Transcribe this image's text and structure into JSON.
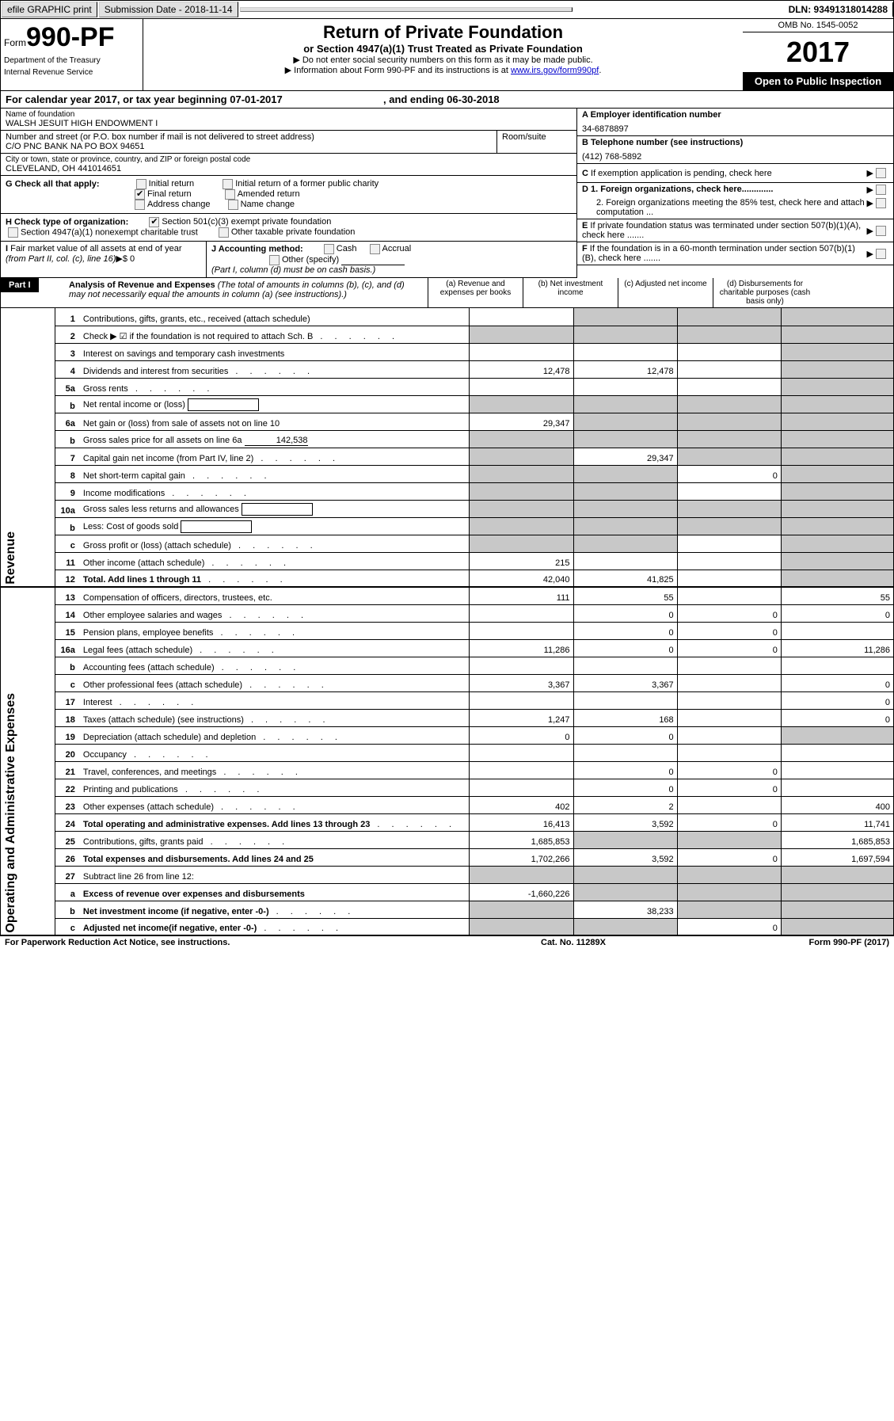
{
  "topbar": {
    "efile": "efile GRAPHIC print",
    "submission": "Submission Date - 2018-11-14",
    "dln": "DLN: 93491318014288"
  },
  "header": {
    "form_word": "Form",
    "form_no": "990-PF",
    "dept1": "Department of the Treasury",
    "dept2": "Internal Revenue Service",
    "title": "Return of Private Foundation",
    "subtitle": "or Section 4947(a)(1) Trust Treated as Private Foundation",
    "note1": "▶ Do not enter social security numbers on this form as it may be made public.",
    "note2": "▶ Information about Form 990-PF and its instructions is at ",
    "note2_link": "www.irs.gov/form990pf",
    "omb": "OMB No. 1545-0052",
    "year": "2017",
    "open": "Open to Public Inspection"
  },
  "calyear": {
    "prefix": "For calendar year 2017, or tax year beginning ",
    "begin": "07-01-2017",
    "mid": " , and ending ",
    "end": "06-30-2018"
  },
  "name_block": {
    "lbl": "Name of foundation",
    "val": "WALSH JESUIT HIGH ENDOWMENT I"
  },
  "ein_block": {
    "lbl": "A Employer identification number",
    "val": "34-6878897"
  },
  "addr1": {
    "lbl": "Number and street (or P.O. box number if mail is not delivered to street address)",
    "val": "C/O PNC BANK NA PO BOX 94651",
    "room_lbl": "Room/suite"
  },
  "tel_block": {
    "lbl": "B Telephone number (see instructions)",
    "val": "(412) 768-5892"
  },
  "addr2": {
    "lbl": "City or town, state or province, country, and ZIP or foreign postal code",
    "val": "CLEVELAND, OH  441014651"
  },
  "c_block": "C If exemption application is pending, check here",
  "g": {
    "lbl": "G Check all that apply:",
    "o1": "Initial return",
    "o2": "Initial return of a former public charity",
    "o3": "Final return",
    "o4": "Amended return",
    "o5": "Address change",
    "o6": "Name change"
  },
  "d": {
    "d1": "D 1. Foreign organizations, check here.............",
    "d2": "2. Foreign organizations meeting the 85% test, check here and attach computation ..."
  },
  "h": {
    "lbl": "H Check type of organization:",
    "o1": "Section 501(c)(3) exempt private foundation",
    "o2": "Section 4947(a)(1) nonexempt charitable trust",
    "o3": "Other taxable private foundation"
  },
  "e": "E If private foundation status was terminated under section 507(b)(1)(A), check here .......",
  "i": "I Fair market value of all assets at end of year (from Part II, col. (c), line 16)▶$ 0",
  "j": {
    "lbl": "J Accounting method:",
    "cash": "Cash",
    "accrual": "Accrual",
    "other": "Other (specify)",
    "note": "(Part I, column (d) must be on cash basis.)"
  },
  "f": "F If the foundation is in a 60-month termination under section 507(b)(1)(B), check here .......",
  "part1": {
    "hdr": "Part I",
    "title": "Analysis of Revenue and Expenses",
    "title_note": "(The total of amounts in columns (b), (c), and (d) may not necessarily equal the amounts in column (a) (see instructions).)",
    "col_a": "(a)  Revenue and expenses per books",
    "col_b": "(b)  Net investment income",
    "col_c": "(c)  Adjusted net income",
    "col_d": "(d)  Disbursements for charitable purposes (cash basis only)"
  },
  "side_rev": "Revenue",
  "side_exp": "Operating and Administrative Expenses",
  "rows": [
    {
      "ln": "1",
      "desc": "Contributions, gifts, grants, etc., received (attach schedule)",
      "a": "",
      "b": "-",
      "c": "-",
      "d": "-"
    },
    {
      "ln": "2",
      "desc": "Check ▶ ☑ if the foundation is not required to attach Sch. B",
      "dots": true,
      "a": "-",
      "b": "-",
      "c": "-",
      "d": "-",
      "noborder_b": true,
      "noborder_c": true,
      "noborder_d": true
    },
    {
      "ln": "3",
      "desc": "Interest on savings and temporary cash investments",
      "a": "",
      "b": "",
      "c": "",
      "d": "-"
    },
    {
      "ln": "4",
      "desc": "Dividends and interest from securities",
      "dots": true,
      "a": "12,478",
      "b": "12,478",
      "c": "",
      "d": "-"
    },
    {
      "ln": "5a",
      "desc": "Gross rents",
      "dots": true,
      "a": "",
      "b": "",
      "c": "",
      "d": "-"
    },
    {
      "ln": "b",
      "desc": "Net rental income or (loss)",
      "inline_box": true,
      "a": "-",
      "b": "-",
      "c": "-",
      "d": "-"
    },
    {
      "ln": "6a",
      "desc": "Net gain or (loss) from sale of assets not on line 10",
      "a": "29,347",
      "b": "-",
      "c": "-",
      "d": "-"
    },
    {
      "ln": "b",
      "desc": "Gross sales price for all assets on line 6a",
      "inline_val": "142,538",
      "a": "-",
      "b": "-",
      "c": "-",
      "d": "-"
    },
    {
      "ln": "7",
      "desc": "Capital gain net income (from Part IV, line 2)",
      "dots": true,
      "a": "-",
      "b": "29,347",
      "c": "-",
      "d": "-"
    },
    {
      "ln": "8",
      "desc": "Net short-term capital gain",
      "dots": true,
      "a": "-",
      "b": "-",
      "c": "0",
      "d": "-"
    },
    {
      "ln": "9",
      "desc": "Income modifications",
      "dots": true,
      "a": "-",
      "b": "-",
      "c": "",
      "d": "-"
    },
    {
      "ln": "10a",
      "desc": "Gross sales less returns and allowances",
      "inline_box": true,
      "a": "-",
      "b": "-",
      "c": "-",
      "d": "-"
    },
    {
      "ln": "b",
      "desc": "Less: Cost of goods sold",
      "inline_box": true,
      "a": "-",
      "b": "-",
      "c": "-",
      "d": "-"
    },
    {
      "ln": "c",
      "desc": "Gross profit or (loss) (attach schedule)",
      "dots": true,
      "a": "-",
      "b": "-",
      "c": "",
      "d": "-"
    },
    {
      "ln": "11",
      "desc": "Other income (attach schedule)",
      "dots": true,
      "a": "215",
      "b": "",
      "c": "",
      "d": "-"
    },
    {
      "ln": "12",
      "desc": "Total. Add lines 1 through 11",
      "bold": true,
      "dots": true,
      "a": "42,040",
      "b": "41,825",
      "c": "",
      "d": "-"
    },
    {
      "ln": "13",
      "desc": "Compensation of officers, directors, trustees, etc.",
      "a": "111",
      "b": "55",
      "c": "",
      "d": "55"
    },
    {
      "ln": "14",
      "desc": "Other employee salaries and wages",
      "dots": true,
      "a": "",
      "b": "0",
      "c": "0",
      "d": "0"
    },
    {
      "ln": "15",
      "desc": "Pension plans, employee benefits",
      "dots": true,
      "a": "",
      "b": "0",
      "c": "0",
      "d": ""
    },
    {
      "ln": "16a",
      "desc": "Legal fees (attach schedule)",
      "dots": true,
      "a": "11,286",
      "b": "0",
      "c": "0",
      "d": "11,286"
    },
    {
      "ln": "b",
      "desc": "Accounting fees (attach schedule)",
      "dots": true,
      "a": "",
      "b": "",
      "c": "",
      "d": ""
    },
    {
      "ln": "c",
      "desc": "Other professional fees (attach schedule)",
      "dots": true,
      "a": "3,367",
      "b": "3,367",
      "c": "",
      "d": "0"
    },
    {
      "ln": "17",
      "desc": "Interest",
      "dots": true,
      "a": "",
      "b": "",
      "c": "",
      "d": "0"
    },
    {
      "ln": "18",
      "desc": "Taxes (attach schedule) (see instructions)",
      "dots": true,
      "a": "1,247",
      "b": "168",
      "c": "",
      "d": "0"
    },
    {
      "ln": "19",
      "desc": "Depreciation (attach schedule) and depletion",
      "dots": true,
      "a": "0",
      "b": "0",
      "c": "",
      "d": "-"
    },
    {
      "ln": "20",
      "desc": "Occupancy",
      "dots": true,
      "a": "",
      "b": "",
      "c": "",
      "d": ""
    },
    {
      "ln": "21",
      "desc": "Travel, conferences, and meetings",
      "dots": true,
      "a": "",
      "b": "0",
      "c": "0",
      "d": ""
    },
    {
      "ln": "22",
      "desc": "Printing and publications",
      "dots": true,
      "a": "",
      "b": "0",
      "c": "0",
      "d": ""
    },
    {
      "ln": "23",
      "desc": "Other expenses (attach schedule)",
      "dots": true,
      "a": "402",
      "b": "2",
      "c": "",
      "d": "400"
    },
    {
      "ln": "24",
      "desc": "Total operating and administrative expenses. Add lines 13 through 23",
      "bold": true,
      "dots": true,
      "a": "16,413",
      "b": "3,592",
      "c": "0",
      "d": "11,741"
    },
    {
      "ln": "25",
      "desc": "Contributions, gifts, grants paid",
      "dots": true,
      "a": "1,685,853",
      "b": "-",
      "c": "-",
      "d": "1,685,853"
    },
    {
      "ln": "26",
      "desc": "Total expenses and disbursements. Add lines 24 and 25",
      "bold": true,
      "a": "1,702,266",
      "b": "3,592",
      "c": "0",
      "d": "1,697,594"
    },
    {
      "ln": "27",
      "desc": "Subtract line 26 from line 12:",
      "a": "-",
      "b": "-",
      "c": "-",
      "d": "-"
    },
    {
      "ln": "a",
      "desc": "Excess of revenue over expenses and disbursements",
      "bold": true,
      "a": "-1,660,226",
      "b": "-",
      "c": "-",
      "d": "-"
    },
    {
      "ln": "b",
      "desc": "Net investment income (if negative, enter -0-)",
      "bold": true,
      "dots": true,
      "a": "-",
      "b": "38,233",
      "c": "-",
      "d": "-"
    },
    {
      "ln": "c",
      "desc": "Adjusted net income(if negative, enter -0-)",
      "bold": true,
      "dots": true,
      "a": "-",
      "b": "-",
      "c": "0",
      "d": "-"
    }
  ],
  "footer": {
    "left": "For Paperwork Reduction Act Notice, see instructions.",
    "mid": "Cat. No. 11289X",
    "right": "Form 990-PF (2017)"
  }
}
